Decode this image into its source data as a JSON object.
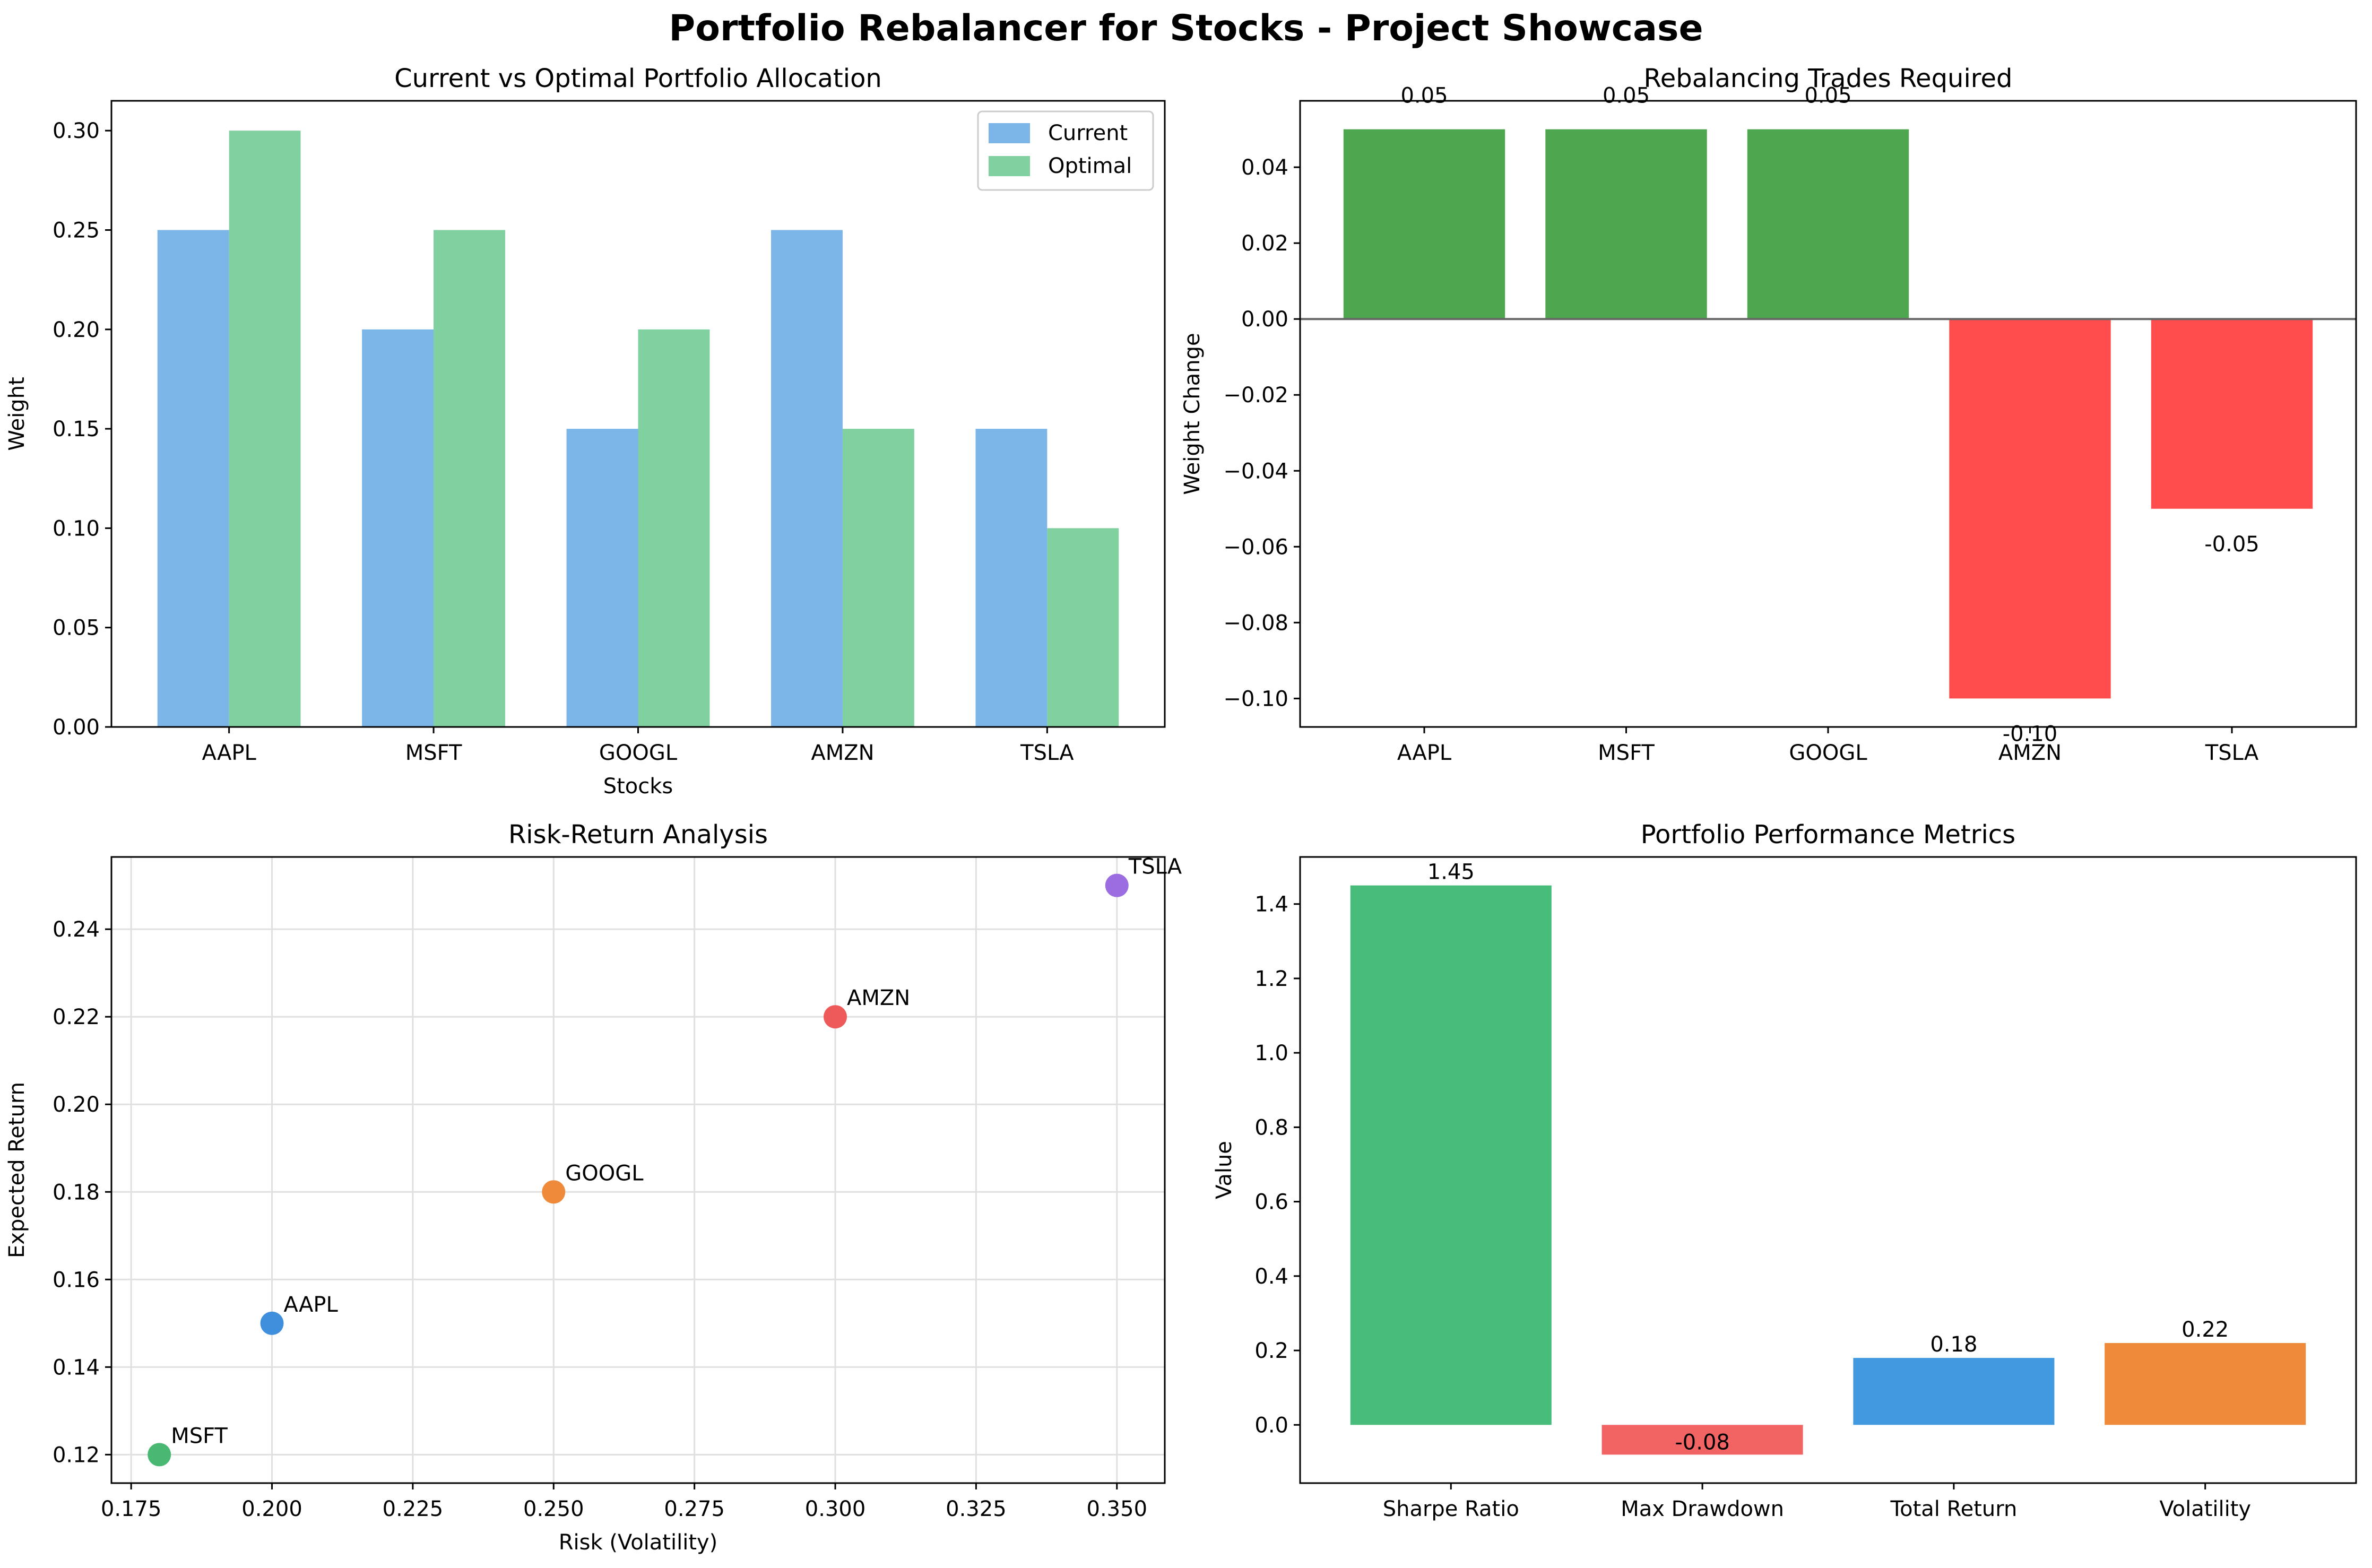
{
  "suptitle": "Portfolio Rebalancer for Stocks - Project Showcase",
  "chart_data": [
    {
      "id": "allocation",
      "type": "bar",
      "title": "Current vs Optimal Portfolio Allocation",
      "xlabel": "Stocks",
      "ylabel": "Weight",
      "categories": [
        "AAPL",
        "MSFT",
        "GOOGL",
        "AMZN",
        "TSLA"
      ],
      "series": [
        {
          "name": "Current",
          "values": [
            0.25,
            0.2,
            0.15,
            0.25,
            0.15
          ],
          "color": "#7cb6e8"
        },
        {
          "name": "Optimal",
          "values": [
            0.3,
            0.25,
            0.2,
            0.15,
            0.1
          ],
          "color": "#80d0a0"
        }
      ],
      "ylim": [
        0,
        0.315
      ],
      "yticks": [
        "0.00",
        "0.05",
        "0.10",
        "0.15",
        "0.20",
        "0.25",
        "0.30"
      ],
      "legend": "top-right",
      "grid": false
    },
    {
      "id": "trades",
      "type": "bar",
      "title": "Rebalancing Trades Required",
      "xlabel": "",
      "ylabel": "Weight Change",
      "categories": [
        "AAPL",
        "MSFT",
        "GOOGL",
        "AMZN",
        "TSLA"
      ],
      "values": [
        0.05,
        0.05,
        0.05,
        -0.1,
        -0.05
      ],
      "labels": [
        "0.05",
        "0.05",
        "0.05",
        "-0.10",
        "-0.05"
      ],
      "positive_color": "#4ea64e",
      "negative_color": "#ff4d4d",
      "ylim": [
        -0.1075,
        0.0575
      ],
      "yticks": [
        "−0.10",
        "−0.08",
        "−0.06",
        "−0.04",
        "−0.02",
        "0.00",
        "0.02",
        "0.04"
      ],
      "grid": false
    },
    {
      "id": "risk_return",
      "type": "scatter",
      "title": "Risk-Return Analysis",
      "xlabel": "Risk (Volatility)",
      "ylabel": "Expected Return",
      "points": [
        {
          "label": "AAPL",
          "x": 0.2,
          "y": 0.15,
          "color": "#3f8fdc"
        },
        {
          "label": "MSFT",
          "x": 0.18,
          "y": 0.12,
          "color": "#48b872"
        },
        {
          "label": "GOOGL",
          "x": 0.25,
          "y": 0.18,
          "color": "#ee8a3a"
        },
        {
          "label": "AMZN",
          "x": 0.3,
          "y": 0.22,
          "color": "#ee5a5a"
        },
        {
          "label": "TSLA",
          "x": 0.35,
          "y": 0.25,
          "color": "#9b6de0"
        }
      ],
      "xlim": [
        0.1715,
        0.3585
      ],
      "ylim": [
        0.1135,
        0.2565
      ],
      "xticks": [
        "0.175",
        "0.200",
        "0.225",
        "0.250",
        "0.275",
        "0.300",
        "0.325",
        "0.350"
      ],
      "yticks": [
        "0.12",
        "0.14",
        "0.16",
        "0.18",
        "0.20",
        "0.22",
        "0.24"
      ],
      "grid": true
    },
    {
      "id": "metrics",
      "type": "bar",
      "title": "Portfolio Performance Metrics",
      "xlabel": "",
      "ylabel": "Value",
      "categories": [
        "Sharpe Ratio",
        "Max Drawdown",
        "Total Return",
        "Volatility"
      ],
      "values": [
        1.45,
        -0.08,
        0.18,
        0.22
      ],
      "labels": [
        "1.45",
        "-0.08",
        "0.18",
        "0.22"
      ],
      "colors": [
        "#48bc7a",
        "#f26464",
        "#4199e0",
        "#ee8a3a"
      ],
      "ylim": [
        -0.1565,
        1.5265
      ],
      "yticks": [
        "0.0",
        "0.2",
        "0.4",
        "0.6",
        "0.8",
        "1.0",
        "1.2",
        "1.4"
      ],
      "grid": false
    }
  ]
}
